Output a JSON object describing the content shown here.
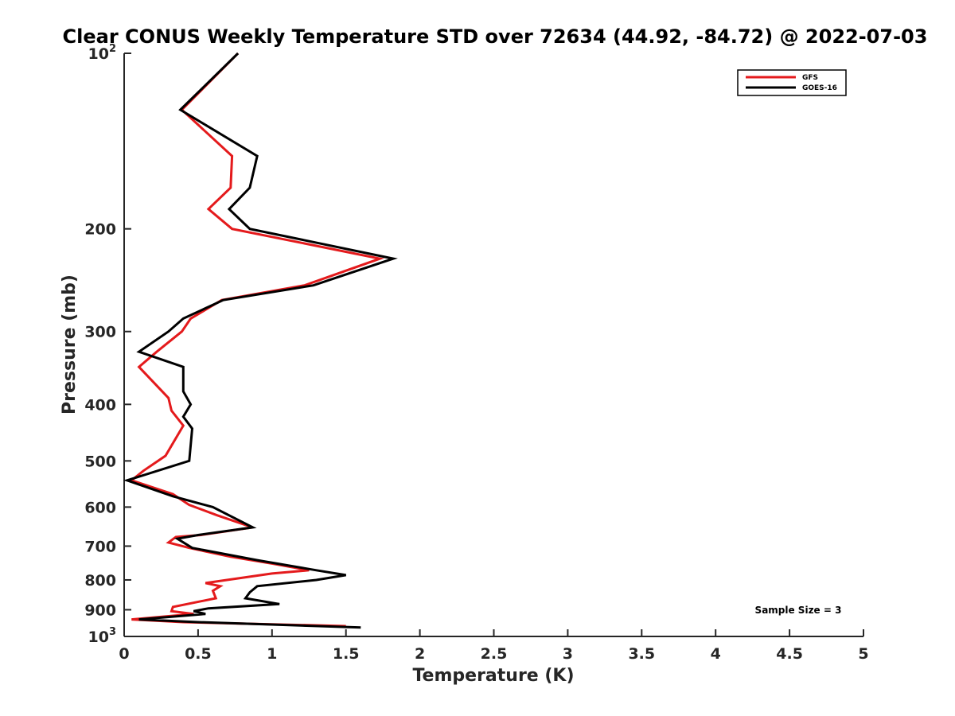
{
  "chart_data": {
    "type": "line",
    "title": "Clear CONUS Weekly Temperature STD over 72634 (44.92, -84.72) @ 2022-07-03",
    "xlabel": "Temperature (K)",
    "ylabel": "Pressure (mb)",
    "xlim": [
      0,
      5
    ],
    "ylim": [
      1000,
      100
    ],
    "yscale": "log",
    "y_reversed": true,
    "x_ticks": [
      "0",
      "0.5",
      "1",
      "1.5",
      "2",
      "2.5",
      "3",
      "3.5",
      "4",
      "4.5",
      "5"
    ],
    "y_ticks": [
      {
        "value": 100,
        "base": "10",
        "exp": "2"
      },
      {
        "value": 200,
        "label": "200"
      },
      {
        "value": 300,
        "label": "300"
      },
      {
        "value": 400,
        "label": "400"
      },
      {
        "value": 500,
        "label": "500"
      },
      {
        "value": 600,
        "label": "600"
      },
      {
        "value": 700,
        "label": "700"
      },
      {
        "value": 800,
        "label": "800"
      },
      {
        "value": 900,
        "label": "900"
      },
      {
        "value": 1000,
        "base": "10",
        "exp": "3"
      }
    ],
    "grid": false,
    "legend_position": "top-right",
    "annotation": "Sample Size = 3",
    "series": [
      {
        "name": "GFS",
        "color": "#e41a1c",
        "points": [
          [
            0.77,
            100
          ],
          [
            0.39,
            125
          ],
          [
            0.73,
            150
          ],
          [
            0.72,
            170
          ],
          [
            0.57,
            185
          ],
          [
            0.73,
            200
          ],
          [
            1.73,
            225
          ],
          [
            1.22,
            250
          ],
          [
            0.66,
            265
          ],
          [
            0.45,
            285
          ],
          [
            0.39,
            300
          ],
          [
            0.22,
            325
          ],
          [
            0.1,
            345
          ],
          [
            0.3,
            390
          ],
          [
            0.32,
            410
          ],
          [
            0.4,
            435
          ],
          [
            0.28,
            490
          ],
          [
            0.13,
            520
          ],
          [
            0.05,
            540
          ],
          [
            0.33,
            570
          ],
          [
            0.44,
            595
          ],
          [
            0.63,
            620
          ],
          [
            0.87,
            650
          ],
          [
            0.52,
            670
          ],
          [
            0.35,
            675
          ],
          [
            0.3,
            690
          ],
          [
            0.44,
            705
          ],
          [
            0.72,
            730
          ],
          [
            1.0,
            750
          ],
          [
            1.25,
            770
          ],
          [
            1.0,
            780
          ],
          [
            0.55,
            810
          ],
          [
            0.65,
            820
          ],
          [
            0.6,
            835
          ],
          [
            0.62,
            860
          ],
          [
            0.33,
            890
          ],
          [
            0.32,
            905
          ],
          [
            0.47,
            915
          ],
          [
            0.05,
            935
          ],
          [
            0.4,
            945
          ],
          [
            1.5,
            960
          ]
        ]
      },
      {
        "name": "GOES-16",
        "color": "#000000",
        "points": [
          [
            0.77,
            100
          ],
          [
            0.38,
            125
          ],
          [
            0.9,
            150
          ],
          [
            0.85,
            170
          ],
          [
            0.71,
            185
          ],
          [
            0.85,
            200
          ],
          [
            1.82,
            225
          ],
          [
            1.28,
            250
          ],
          [
            0.67,
            265
          ],
          [
            0.4,
            285
          ],
          [
            0.3,
            300
          ],
          [
            0.1,
            325
          ],
          [
            0.4,
            345
          ],
          [
            0.4,
            380
          ],
          [
            0.45,
            400
          ],
          [
            0.4,
            420
          ],
          [
            0.46,
            440
          ],
          [
            0.44,
            500
          ],
          [
            0.02,
            540
          ],
          [
            0.33,
            575
          ],
          [
            0.6,
            600
          ],
          [
            0.87,
            650
          ],
          [
            0.5,
            670
          ],
          [
            0.36,
            680
          ],
          [
            0.46,
            705
          ],
          [
            0.9,
            740
          ],
          [
            1.3,
            770
          ],
          [
            1.5,
            785
          ],
          [
            1.3,
            800
          ],
          [
            0.9,
            820
          ],
          [
            0.85,
            840
          ],
          [
            0.82,
            860
          ],
          [
            1.05,
            880
          ],
          [
            0.57,
            895
          ],
          [
            0.47,
            905
          ],
          [
            0.55,
            915
          ],
          [
            0.1,
            935
          ],
          [
            0.5,
            945
          ],
          [
            1.6,
            965
          ]
        ]
      }
    ]
  }
}
